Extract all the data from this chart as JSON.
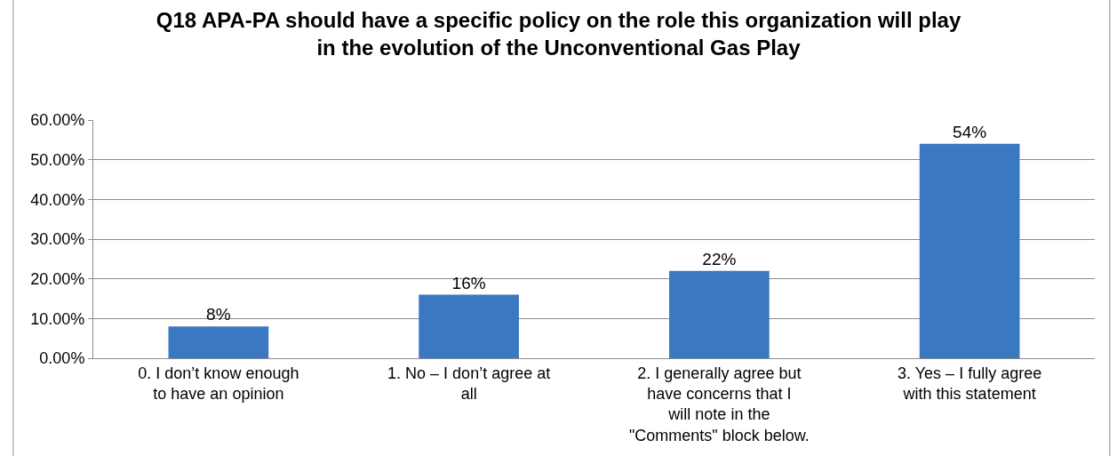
{
  "chart_data": {
    "type": "bar",
    "title": "Q18 APA-PA should have a specific policy on the role this organization will play in the evolution of the Unconventional Gas Play",
    "categories": [
      "0. I don’t know enough to have an opinion",
      "1. No – I don’t agree at all",
      "2. I generally agree but have concerns that I will note in the \"Comments\" block below.",
      "3. Yes – I fully agree with this statement"
    ],
    "values": [
      8,
      16,
      22,
      54
    ],
    "value_labels": [
      "8%",
      "16%",
      "22%",
      "54%"
    ],
    "color": "#3b78c2",
    "ylim": [
      0,
      60
    ],
    "yticks": [
      {
        "value": 0,
        "label": "0.00%"
      },
      {
        "value": 10,
        "label": "10.00%"
      },
      {
        "value": 20,
        "label": "20.00%"
      },
      {
        "value": 30,
        "label": "30.00%"
      },
      {
        "value": 40,
        "label": "40.00%"
      },
      {
        "value": 50,
        "label": "50.00%"
      },
      {
        "value": 60,
        "label": "60.00%"
      }
    ],
    "grid": "y",
    "legend": false
  }
}
